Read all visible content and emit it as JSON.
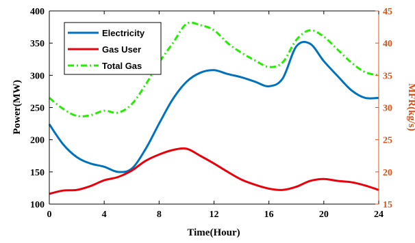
{
  "chart_data": {
    "type": "line",
    "x": [
      0,
      1,
      2,
      3,
      4,
      5,
      6,
      7,
      8,
      9,
      10,
      11,
      12,
      13,
      14,
      15,
      16,
      17,
      18,
      19,
      20,
      21,
      22,
      23,
      24
    ],
    "xlabel": "Time(Hour)",
    "ylabel": "Power(MW)",
    "y2label": "MFR(kg/s)",
    "xlim": [
      0,
      24
    ],
    "ylim": [
      100,
      400
    ],
    "y2lim": [
      15,
      45
    ],
    "xticks": [
      "0",
      "4",
      "8",
      "12",
      "16",
      "20",
      "24"
    ],
    "yticks": [
      "100",
      "150",
      "200",
      "250",
      "300",
      "350",
      "400"
    ],
    "y2ticks": [
      "15",
      "20",
      "25",
      "30",
      "35",
      "40",
      "45"
    ],
    "grid": false,
    "legend_position": "top-left",
    "series": [
      {
        "name": "Electricity",
        "axis": "left",
        "color": "#0072BD",
        "style": "solid",
        "values": [
          224,
          193,
          173,
          163,
          158,
          150,
          155,
          185,
          225,
          263,
          290,
          304,
          308,
          302,
          297,
          290,
          283,
          295,
          345,
          349,
          322,
          299,
          277,
          265,
          265
        ]
      },
      {
        "name": "Gas User",
        "axis": "left",
        "color": "#e8000b",
        "style": "solid",
        "values": [
          116,
          121,
          122,
          128,
          137,
          142,
          152,
          167,
          177,
          184,
          186,
          175,
          163,
          150,
          138,
          130,
          124,
          122,
          127,
          136,
          139,
          136,
          134,
          129,
          122
        ]
      },
      {
        "name": "Total Gas",
        "axis": "right",
        "color": "#22ee00",
        "style": "dashdot",
        "values": [
          31.5,
          29.8,
          28.7,
          28.8,
          29.5,
          29.2,
          30.5,
          33.5,
          37,
          40,
          43,
          42.8,
          42,
          40,
          38.5,
          37.3,
          36.3,
          37,
          40.5,
          42,
          41,
          39,
          37,
          35.5,
          35
        ]
      }
    ]
  }
}
